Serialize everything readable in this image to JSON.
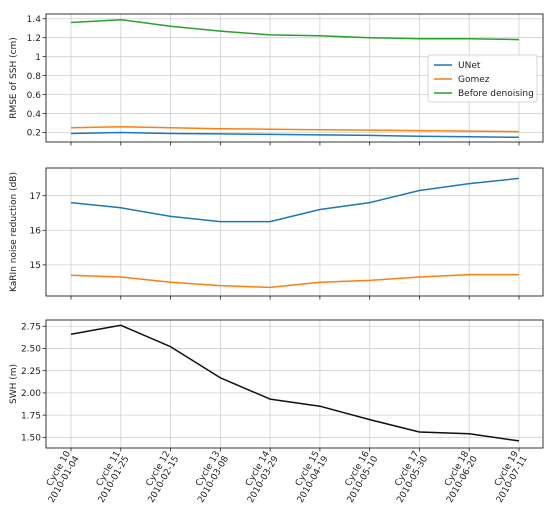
{
  "chart_data": [
    {
      "type": "line",
      "ylabel": "RMSE of SSH (cm)",
      "xlabel": "",
      "ylim": [
        0.1,
        1.45
      ],
      "yticks": [
        0.2,
        0.4,
        0.6,
        0.8,
        1.0,
        1.2,
        1.4
      ],
      "grid": true,
      "legend": "center-right",
      "series": [
        {
          "name": "UNet",
          "color": "#1f77b4",
          "values": [
            0.19,
            0.2,
            0.19,
            0.185,
            0.18,
            0.175,
            0.17,
            0.16,
            0.155,
            0.15
          ]
        },
        {
          "name": "Gomez",
          "color": "#ff7f0e",
          "values": [
            0.25,
            0.26,
            0.25,
            0.24,
            0.235,
            0.23,
            0.225,
            0.22,
            0.215,
            0.21
          ]
        },
        {
          "name": "Before denoising",
          "color": "#2ca02c",
          "values": [
            1.36,
            1.39,
            1.32,
            1.27,
            1.23,
            1.22,
            1.2,
            1.19,
            1.19,
            1.18
          ]
        }
      ]
    },
    {
      "type": "line",
      "ylabel": "KaRIn noise reduction (dB)",
      "xlabel": "",
      "ylim": [
        14.1,
        17.8
      ],
      "yticks": [
        15,
        16,
        17
      ],
      "grid": true,
      "series": [
        {
          "name": "",
          "color": "#1f77b4",
          "values": [
            16.8,
            16.65,
            16.4,
            16.25,
            16.25,
            16.6,
            16.8,
            17.15,
            17.35,
            17.5
          ]
        },
        {
          "name": "",
          "color": "#ff7f0e",
          "values": [
            14.7,
            14.65,
            14.5,
            14.4,
            14.35,
            14.5,
            14.55,
            14.65,
            14.72,
            14.72
          ]
        }
      ]
    },
    {
      "type": "line",
      "ylabel": "SWH (m)",
      "xlabel": "",
      "ylim": [
        1.38,
        2.82
      ],
      "yticks": [
        1.5,
        1.75,
        2.0,
        2.25,
        2.5,
        2.75
      ],
      "ytick_labels": [
        "1.50",
        "1.75",
        "2.00",
        "2.25",
        "2.50",
        "2.75"
      ],
      "grid": true,
      "series": [
        {
          "name": "",
          "color": "#111111",
          "values": [
            2.66,
            2.76,
            2.52,
            2.17,
            1.93,
            1.85,
            1.7,
            1.56,
            1.54,
            1.46
          ]
        }
      ]
    }
  ],
  "x_categories": [
    [
      "Cycle 10",
      "2010-01-04"
    ],
    [
      "Cycle 11",
      "2010-01-25"
    ],
    [
      "Cycle 12",
      "2010-02-15"
    ],
    [
      "Cycle 13",
      "2010-03-08"
    ],
    [
      "Cycle 14",
      "2010-03-29"
    ],
    [
      "Cycle 15",
      "2010-04-19"
    ],
    [
      "Cycle 16",
      "2010-05-10"
    ],
    [
      "Cycle 17",
      "2010-05-30"
    ],
    [
      "Cycle 18",
      "2010-06-20"
    ],
    [
      "Cycle 19",
      "2010-07-11"
    ]
  ]
}
